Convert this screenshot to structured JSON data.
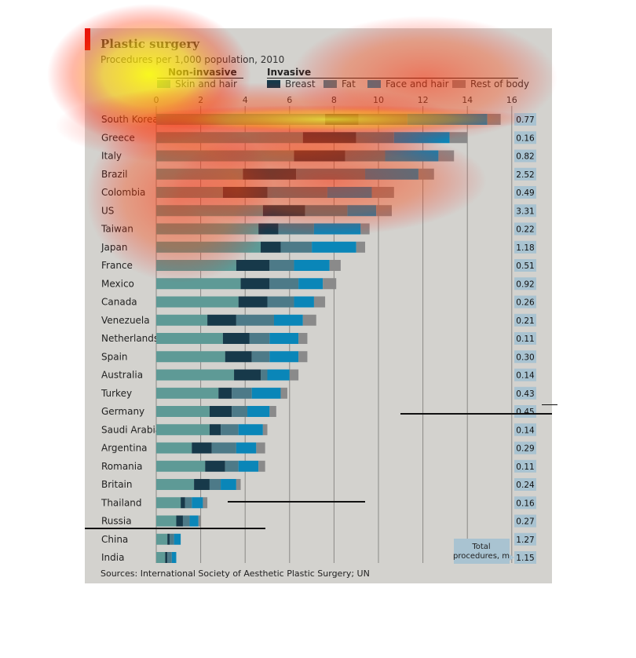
{
  "title": "Plastic surgery",
  "subtitle": "Procedures per 1,000 population, 2010",
  "group_noninvasive": "Non-invasive",
  "group_invasive": "Invasive",
  "legend": [
    {
      "label": "Skin and hair",
      "color": "#5e9a96"
    },
    {
      "label": "Breast",
      "color": "#17394a"
    },
    {
      "label": "Fat",
      "color": "#4d7a88"
    },
    {
      "label": "Face and hair",
      "color": "#0a86b8"
    },
    {
      "label": "Rest of body",
      "color": "#8a8a8a"
    }
  ],
  "total_label": "Total procedures, m",
  "source": "Sources: International Society of Aesthetic Plastic Surgery; UN",
  "chart_data": {
    "type": "bar",
    "orientation": "horizontal",
    "stacked": true,
    "xlim": [
      0,
      16
    ],
    "xticks": [
      "0",
      "2",
      "4",
      "6",
      "8",
      "10",
      "12",
      "14",
      "16"
    ],
    "categories": [
      "South Korea",
      "Greece",
      "Italy",
      "Brazil",
      "Colombia",
      "US",
      "Taiwan",
      "Japan",
      "France",
      "Mexico",
      "Canada",
      "Venezuela",
      "Netherlands",
      "Spain",
      "Australia",
      "Turkey",
      "Germany",
      "Saudi Arabia",
      "Argentina",
      "Romania",
      "Britain",
      "Thailand",
      "Russia",
      "China",
      "India"
    ],
    "series": [
      {
        "name": "Skin and hair",
        "values": [
          7.6,
          6.6,
          6.2,
          3.9,
          3.0,
          4.8,
          4.6,
          4.7,
          3.6,
          3.8,
          3.7,
          2.3,
          3.0,
          3.1,
          3.5,
          2.8,
          2.4,
          2.4,
          1.6,
          2.2,
          1.7,
          1.1,
          0.9,
          0.5,
          0.4
        ]
      },
      {
        "name": "Breast",
        "values": [
          1.5,
          2.4,
          2.3,
          2.4,
          2.0,
          1.9,
          0.9,
          0.9,
          1.5,
          1.3,
          1.3,
          1.3,
          1.2,
          1.2,
          1.2,
          0.6,
          1.0,
          0.5,
          0.9,
          0.9,
          0.7,
          0.2,
          0.3,
          0.1,
          0.1
        ]
      },
      {
        "name": "Fat",
        "values": [
          2.2,
          1.7,
          1.8,
          3.1,
          2.7,
          1.9,
          1.6,
          1.4,
          1.1,
          1.3,
          1.2,
          1.7,
          0.9,
          0.8,
          0.3,
          0.9,
          0.7,
          0.8,
          1.1,
          0.6,
          0.5,
          0.3,
          0.3,
          0.2,
          0.2
        ]
      },
      {
        "name": "Face and hair",
        "values": [
          3.6,
          2.5,
          2.4,
          2.4,
          2.0,
          1.3,
          2.1,
          2.0,
          1.6,
          1.1,
          0.9,
          1.3,
          1.3,
          1.3,
          1.0,
          1.3,
          1.0,
          1.1,
          0.9,
          0.9,
          0.7,
          0.5,
          0.4,
          0.3,
          0.2
        ]
      },
      {
        "name": "Rest of body",
        "values": [
          0.6,
          0.8,
          0.7,
          0.7,
          1.0,
          0.7,
          0.4,
          0.4,
          0.5,
          0.6,
          0.5,
          0.6,
          0.4,
          0.4,
          0.4,
          0.3,
          0.3,
          0.2,
          0.4,
          0.3,
          0.2,
          0.2,
          0.1,
          0.0,
          0.0
        ]
      }
    ],
    "totals_millions": [
      "0.77",
      "0.16",
      "0.82",
      "2.52",
      "0.49",
      "3.31",
      "0.22",
      "1.18",
      "0.51",
      "0.92",
      "0.26",
      "0.21",
      "0.11",
      "0.30",
      "0.14",
      "0.43",
      "0.45",
      "0.14",
      "0.29",
      "0.11",
      "0.24",
      "0.16",
      "0.27",
      "1.27",
      "1.15"
    ]
  }
}
